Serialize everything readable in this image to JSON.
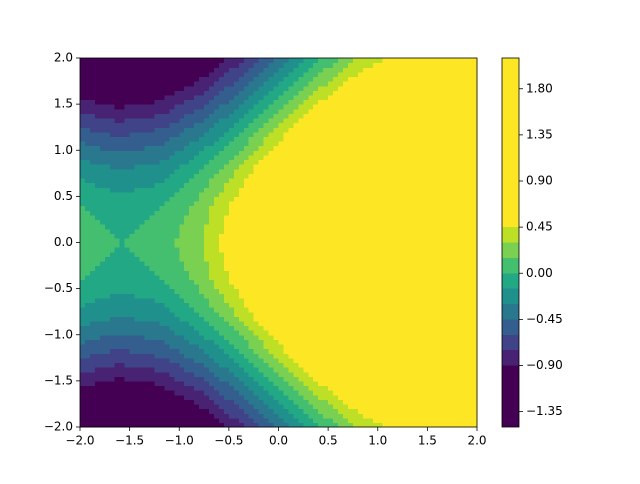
{
  "chart_data": {
    "type": "contour",
    "x": [
      -2,
      -1.6,
      -1.2,
      -0.8,
      -0.4,
      0,
      0.4,
      0.8,
      1.2,
      1.6,
      2
    ],
    "y": [
      -2,
      -1.6,
      -1.2,
      -0.8,
      -0.4,
      0,
      0.4,
      0.8,
      1.2,
      1.6,
      2
    ],
    "z": [
      [
        -1.33,
        -1.42,
        -1.35,
        -1.13,
        -0.81,
        -0.42,
        -0.03,
        0.3,
        0.52,
        0.58,
        0.49
      ],
      [
        -0.94,
        -1.03,
        -0.96,
        -0.75,
        -0.42,
        -0.03,
        0.36,
        0.69,
        0.9,
        0.97,
        0.88
      ],
      [
        -0.55,
        -0.64,
        -0.57,
        -0.36,
        -0.03,
        0.36,
        0.75,
        1.08,
        1.29,
        1.36,
        1.27
      ],
      [
        -0.21,
        -0.3,
        -0.24,
        -0.02,
        0.31,
        0.7,
        1.09,
        1.41,
        1.63,
        1.7,
        1.61
      ],
      [
        0.01,
        -0.08,
        -0.01,
        0.2,
        0.53,
        0.92,
        1.31,
        1.64,
        1.85,
        1.92,
        1.83
      ],
      [
        0.09,
        0.0,
        0.07,
        0.28,
        0.61,
        1.0,
        1.39,
        1.72,
        1.93,
        2.0,
        1.91
      ],
      [
        0.01,
        -0.08,
        -0.01,
        0.2,
        0.53,
        0.92,
        1.31,
        1.64,
        1.85,
        1.92,
        1.83
      ],
      [
        -0.21,
        -0.3,
        -0.24,
        -0.02,
        0.31,
        0.7,
        1.09,
        1.41,
        1.63,
        1.7,
        1.61
      ],
      [
        -0.55,
        -0.64,
        -0.57,
        -0.36,
        -0.03,
        0.36,
        0.75,
        1.08,
        1.29,
        1.36,
        1.27
      ],
      [
        -0.94,
        -1.03,
        -0.96,
        -0.75,
        -0.42,
        -0.03,
        0.36,
        0.69,
        0.9,
        0.97,
        0.88
      ],
      [
        -1.33,
        -1.42,
        -1.35,
        -1.13,
        -0.81,
        -0.42,
        -0.03,
        0.3,
        0.52,
        0.58,
        0.49
      ]
    ],
    "levels": [
      -1.5,
      -0.9,
      -0.75,
      -0.6,
      -0.45,
      -0.3,
      -0.15,
      0,
      0.15,
      0.3,
      0.45,
      2.1
    ],
    "colors": [
      "#440154",
      "#482374",
      "#404387",
      "#345e8d",
      "#29788e",
      "#20908c",
      "#22a884",
      "#44bf70",
      "#7ad151",
      "#bddf26",
      "#fde725"
    ],
    "xlim": [
      -2,
      2
    ],
    "ylim": [
      -2,
      2
    ],
    "xticks": [
      {
        "value": -2,
        "label": "−2.0"
      },
      {
        "value": -1.5,
        "label": "−1.5"
      },
      {
        "value": -1,
        "label": "−1.0"
      },
      {
        "value": -0.5,
        "label": "−0.5"
      },
      {
        "value": 0,
        "label": "0.0"
      },
      {
        "value": 0.5,
        "label": "0.5"
      },
      {
        "value": 1,
        "label": "1.0"
      },
      {
        "value": 1.5,
        "label": "1.5"
      },
      {
        "value": 2,
        "label": "2.0"
      }
    ],
    "yticks": [
      {
        "value": -2,
        "label": "−2.0"
      },
      {
        "value": -1.5,
        "label": "−1.5"
      },
      {
        "value": -1,
        "label": "−1.0"
      },
      {
        "value": -0.5,
        "label": "−0.5"
      },
      {
        "value": 0,
        "label": "0.0"
      },
      {
        "value": 0.5,
        "label": "0.5"
      },
      {
        "value": 1,
        "label": "1.0"
      },
      {
        "value": 1.5,
        "label": "1.5"
      },
      {
        "value": 2,
        "label": "2.0"
      }
    ],
    "colorbar_ticks": [
      {
        "value": -1.35,
        "label": "−1.35"
      },
      {
        "value": -0.9,
        "label": "−0.90"
      },
      {
        "value": -0.45,
        "label": "−0.45"
      },
      {
        "value": 0,
        "label": "0.00"
      },
      {
        "value": 0.45,
        "label": "0.45"
      },
      {
        "value": 0.9,
        "label": "0.90"
      },
      {
        "value": 1.35,
        "label": "1.35"
      },
      {
        "value": 1.8,
        "label": "1.80"
      }
    ]
  }
}
